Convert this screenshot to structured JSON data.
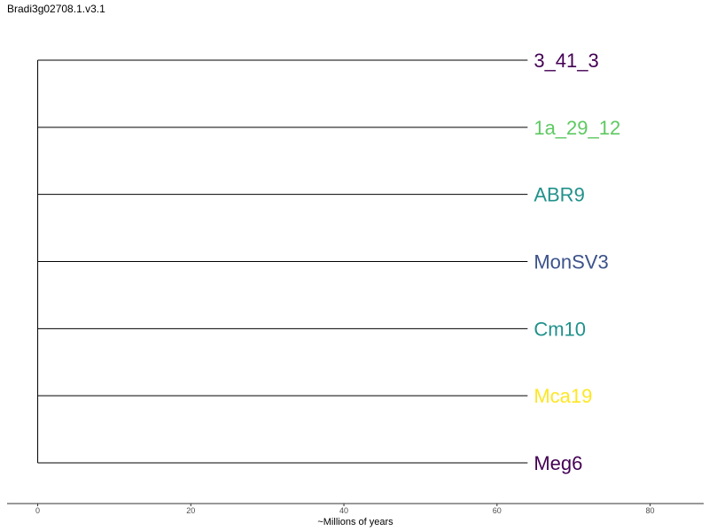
{
  "title": "Bradi3g02708.1.v3.1",
  "axis": {
    "label": "~Millions of years",
    "ticks": [
      "0",
      "20",
      "40",
      "60",
      "80"
    ],
    "min": -4,
    "max": 87
  },
  "chart_data": {
    "type": "dendrogram",
    "title": "Bradi3g02708.1.v3.1",
    "xlabel": "~Millions of years",
    "ylabel": "",
    "xlim": [
      -4,
      87
    ],
    "x_ticks": [
      0,
      20,
      40,
      60,
      80
    ],
    "root_age": 0,
    "tip_distance": 64,
    "grid": false,
    "tips": [
      {
        "label": "3_41_3",
        "color": "#440154"
      },
      {
        "label": "1a_29_12",
        "color": "#5ec962"
      },
      {
        "label": "ABR9",
        "color": "#21918c"
      },
      {
        "label": "MonSV3",
        "color": "#3b528b"
      },
      {
        "label": "Cm10",
        "color": "#21918c"
      },
      {
        "label": "Mca19",
        "color": "#fde725"
      },
      {
        "label": "Meg6",
        "color": "#440154"
      }
    ]
  }
}
